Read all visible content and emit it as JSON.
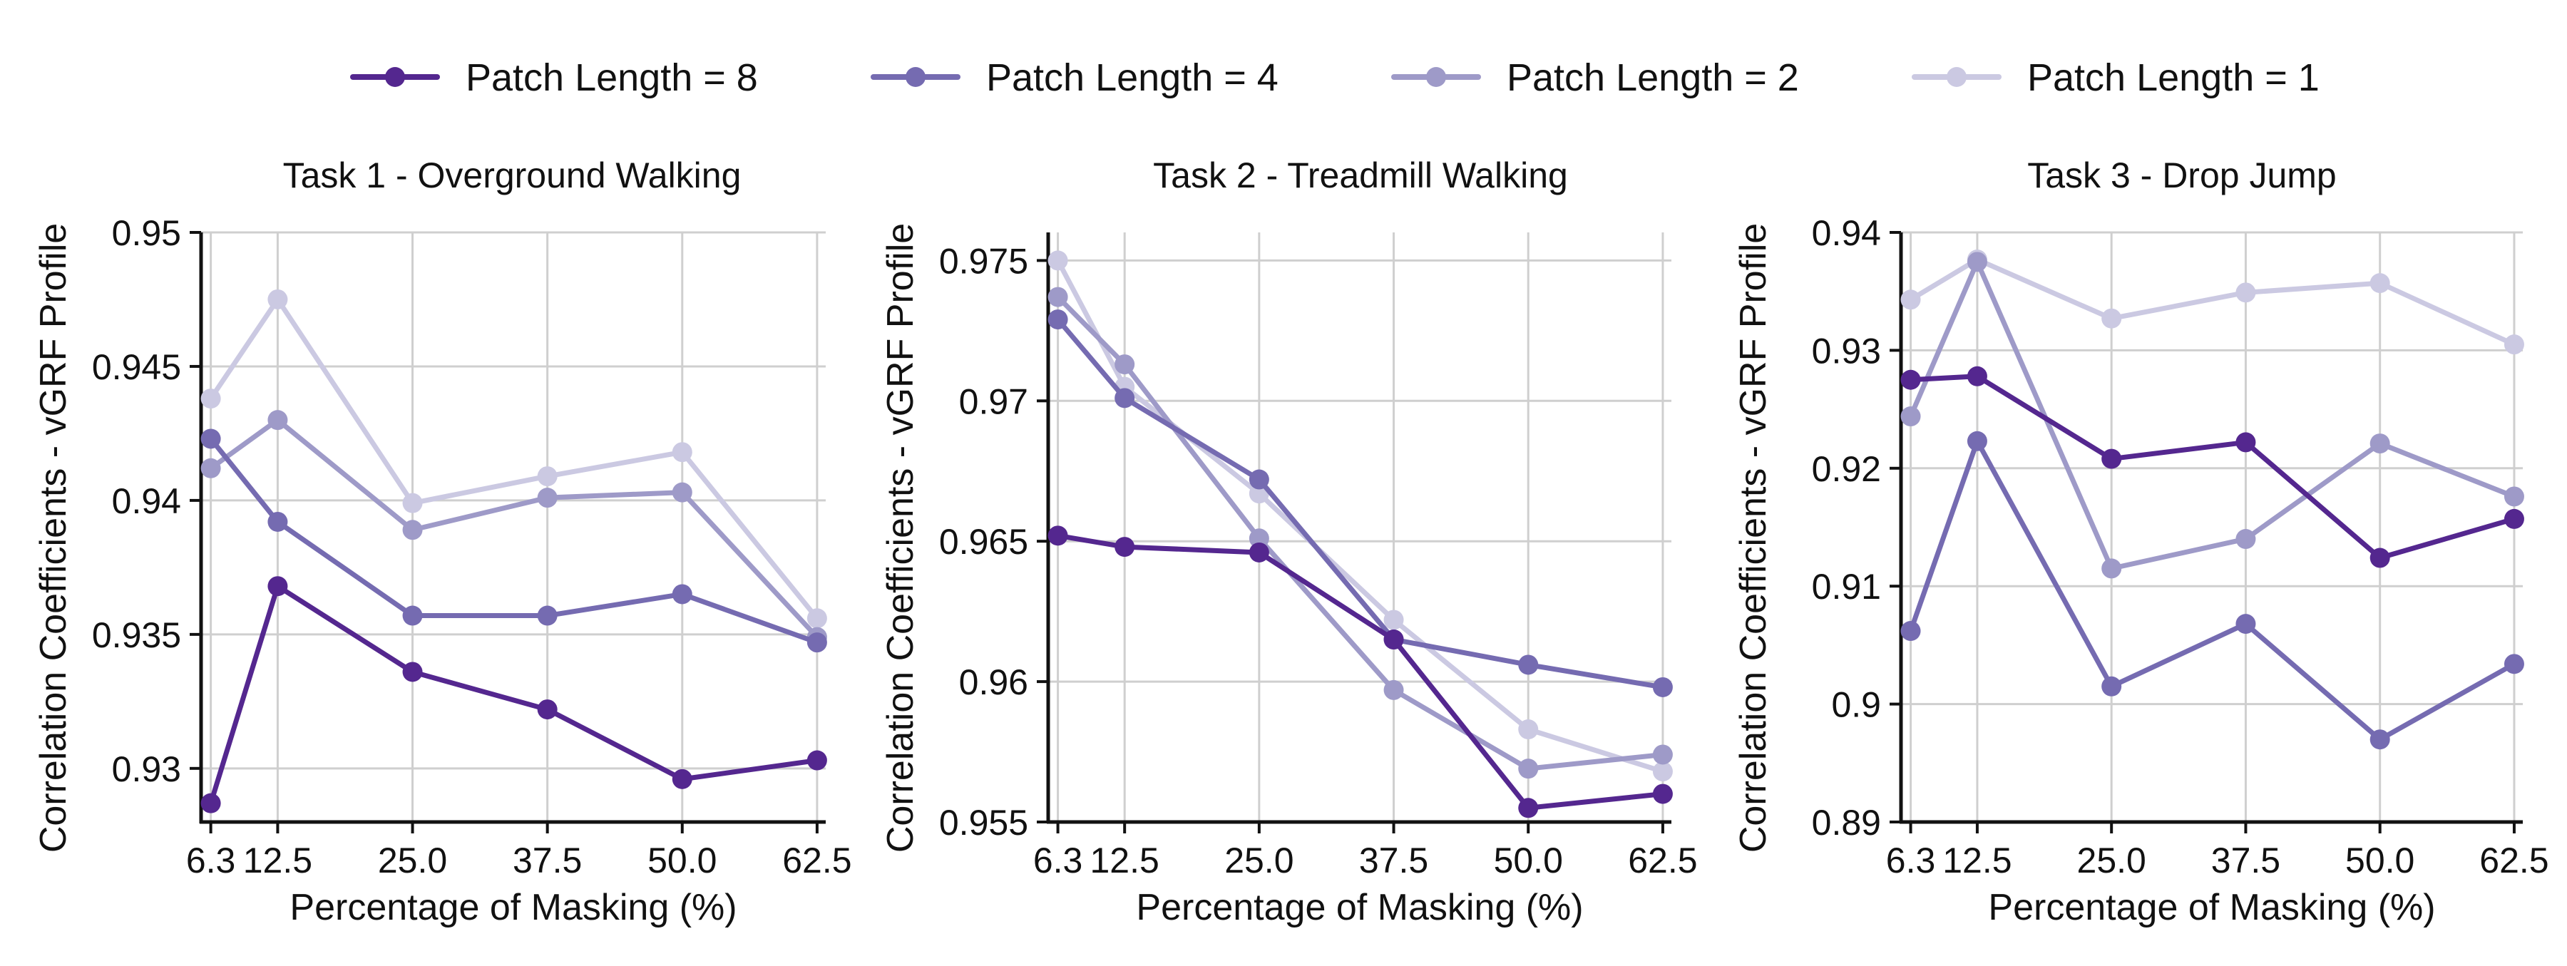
{
  "legend": [
    {
      "label": "Patch Length = 8",
      "color": "#54278f"
    },
    {
      "label": "Patch Length = 4",
      "color": "#756bb1"
    },
    {
      "label": "Patch Length = 2",
      "color": "#9e9ac8"
    },
    {
      "label": "Patch Length = 1",
      "color": "#cbc9e2"
    }
  ],
  "chart_data": [
    {
      "type": "line",
      "title": "Task 1 - Overground Walking",
      "xlabel": "Percentage of Masking (%)",
      "ylabel": "Correlation Coefficients - vGRF Profile",
      "x": [
        6.3,
        12.5,
        25.0,
        37.5,
        50.0,
        62.5
      ],
      "xtick_labels": [
        "6.3",
        "12.5",
        "25.0",
        "37.5",
        "50.0",
        "62.5"
      ],
      "ylim": [
        0.928,
        0.95
      ],
      "yticks": [
        0.93,
        0.935,
        0.94,
        0.945,
        0.95
      ],
      "ytick_labels": [
        "0.93",
        "0.935",
        "0.94",
        "0.945",
        "0.95"
      ],
      "grid": true,
      "series": [
        {
          "name": "Patch Length = 8",
          "color": "#54278f",
          "values": [
            0.9287,
            0.9368,
            0.9336,
            0.9322,
            0.9296,
            0.9303
          ]
        },
        {
          "name": "Patch Length = 4",
          "color": "#756bb1",
          "values": [
            0.9423,
            0.9392,
            0.9357,
            0.9357,
            0.9365,
            0.9347
          ]
        },
        {
          "name": "Patch Length = 2",
          "color": "#9e9ac8",
          "values": [
            0.9412,
            0.943,
            0.9389,
            0.9401,
            0.9403,
            0.9349
          ]
        },
        {
          "name": "Patch Length = 1",
          "color": "#cbc9e2",
          "values": [
            0.9438,
            0.9475,
            0.9399,
            0.9409,
            0.9418,
            0.9356
          ]
        }
      ]
    },
    {
      "type": "line",
      "title": "Task 2 - Treadmill Walking",
      "xlabel": "Percentage of Masking (%)",
      "ylabel": "Correlation Coefficients - vGRF Profile",
      "x": [
        6.3,
        12.5,
        25.0,
        37.5,
        50.0,
        62.5
      ],
      "xtick_labels": [
        "6.3",
        "12.5",
        "25.0",
        "37.5",
        "50.0",
        "62.5"
      ],
      "ylim": [
        0.955,
        0.976
      ],
      "yticks": [
        0.955,
        0.96,
        0.965,
        0.97,
        0.975
      ],
      "ytick_labels": [
        "0.955",
        "0.96",
        "0.965",
        "0.97",
        "0.975"
      ],
      "grid": true,
      "series": [
        {
          "name": "Patch Length = 8",
          "color": "#54278f",
          "values": [
            0.9652,
            0.9648,
            0.9646,
            0.9615,
            0.9555,
            0.956
          ]
        },
        {
          "name": "Patch Length = 4",
          "color": "#756bb1",
          "values": [
            0.9729,
            0.9701,
            0.9672,
            0.9615,
            0.9606,
            0.9598
          ]
        },
        {
          "name": "Patch Length = 2",
          "color": "#9e9ac8",
          "values": [
            0.9737,
            0.9713,
            0.9651,
            0.9597,
            0.9569,
            0.9574
          ]
        },
        {
          "name": "Patch Length = 1",
          "color": "#cbc9e2",
          "values": [
            0.975,
            0.9705,
            0.9667,
            0.9622,
            0.9583,
            0.9568
          ]
        }
      ]
    },
    {
      "type": "line",
      "title": "Task 3 - Drop Jump",
      "xlabel": "Percentage of Masking (%)",
      "ylabel": "Correlation Coefficients - vGRF Profile",
      "x": [
        6.3,
        12.5,
        25.0,
        37.5,
        50.0,
        62.5
      ],
      "xtick_labels": [
        "6.3",
        "12.5",
        "25.0",
        "37.5",
        "50.0",
        "62.5"
      ],
      "ylim": [
        0.89,
        0.94
      ],
      "yticks": [
        0.89,
        0.9,
        0.91,
        0.92,
        0.93,
        0.94
      ],
      "ytick_labels": [
        "0.89",
        "0.9",
        "0.91",
        "0.92",
        "0.93",
        "0.94"
      ],
      "grid": true,
      "series": [
        {
          "name": "Patch Length = 8",
          "color": "#54278f",
          "values": [
            0.9275,
            0.9278,
            0.9208,
            0.9222,
            0.9124,
            0.9157
          ]
        },
        {
          "name": "Patch Length = 4",
          "color": "#756bb1",
          "values": [
            0.9062,
            0.9223,
            0.9015,
            0.9068,
            0.897,
            0.9034
          ]
        },
        {
          "name": "Patch Length = 2",
          "color": "#9e9ac8",
          "values": [
            0.9244,
            0.9375,
            0.9115,
            0.914,
            0.9221,
            0.9176
          ]
        },
        {
          "name": "Patch Length = 1",
          "color": "#cbc9e2",
          "values": [
            0.9343,
            0.9377,
            0.9327,
            0.9349,
            0.9357,
            0.9305
          ]
        }
      ]
    }
  ]
}
